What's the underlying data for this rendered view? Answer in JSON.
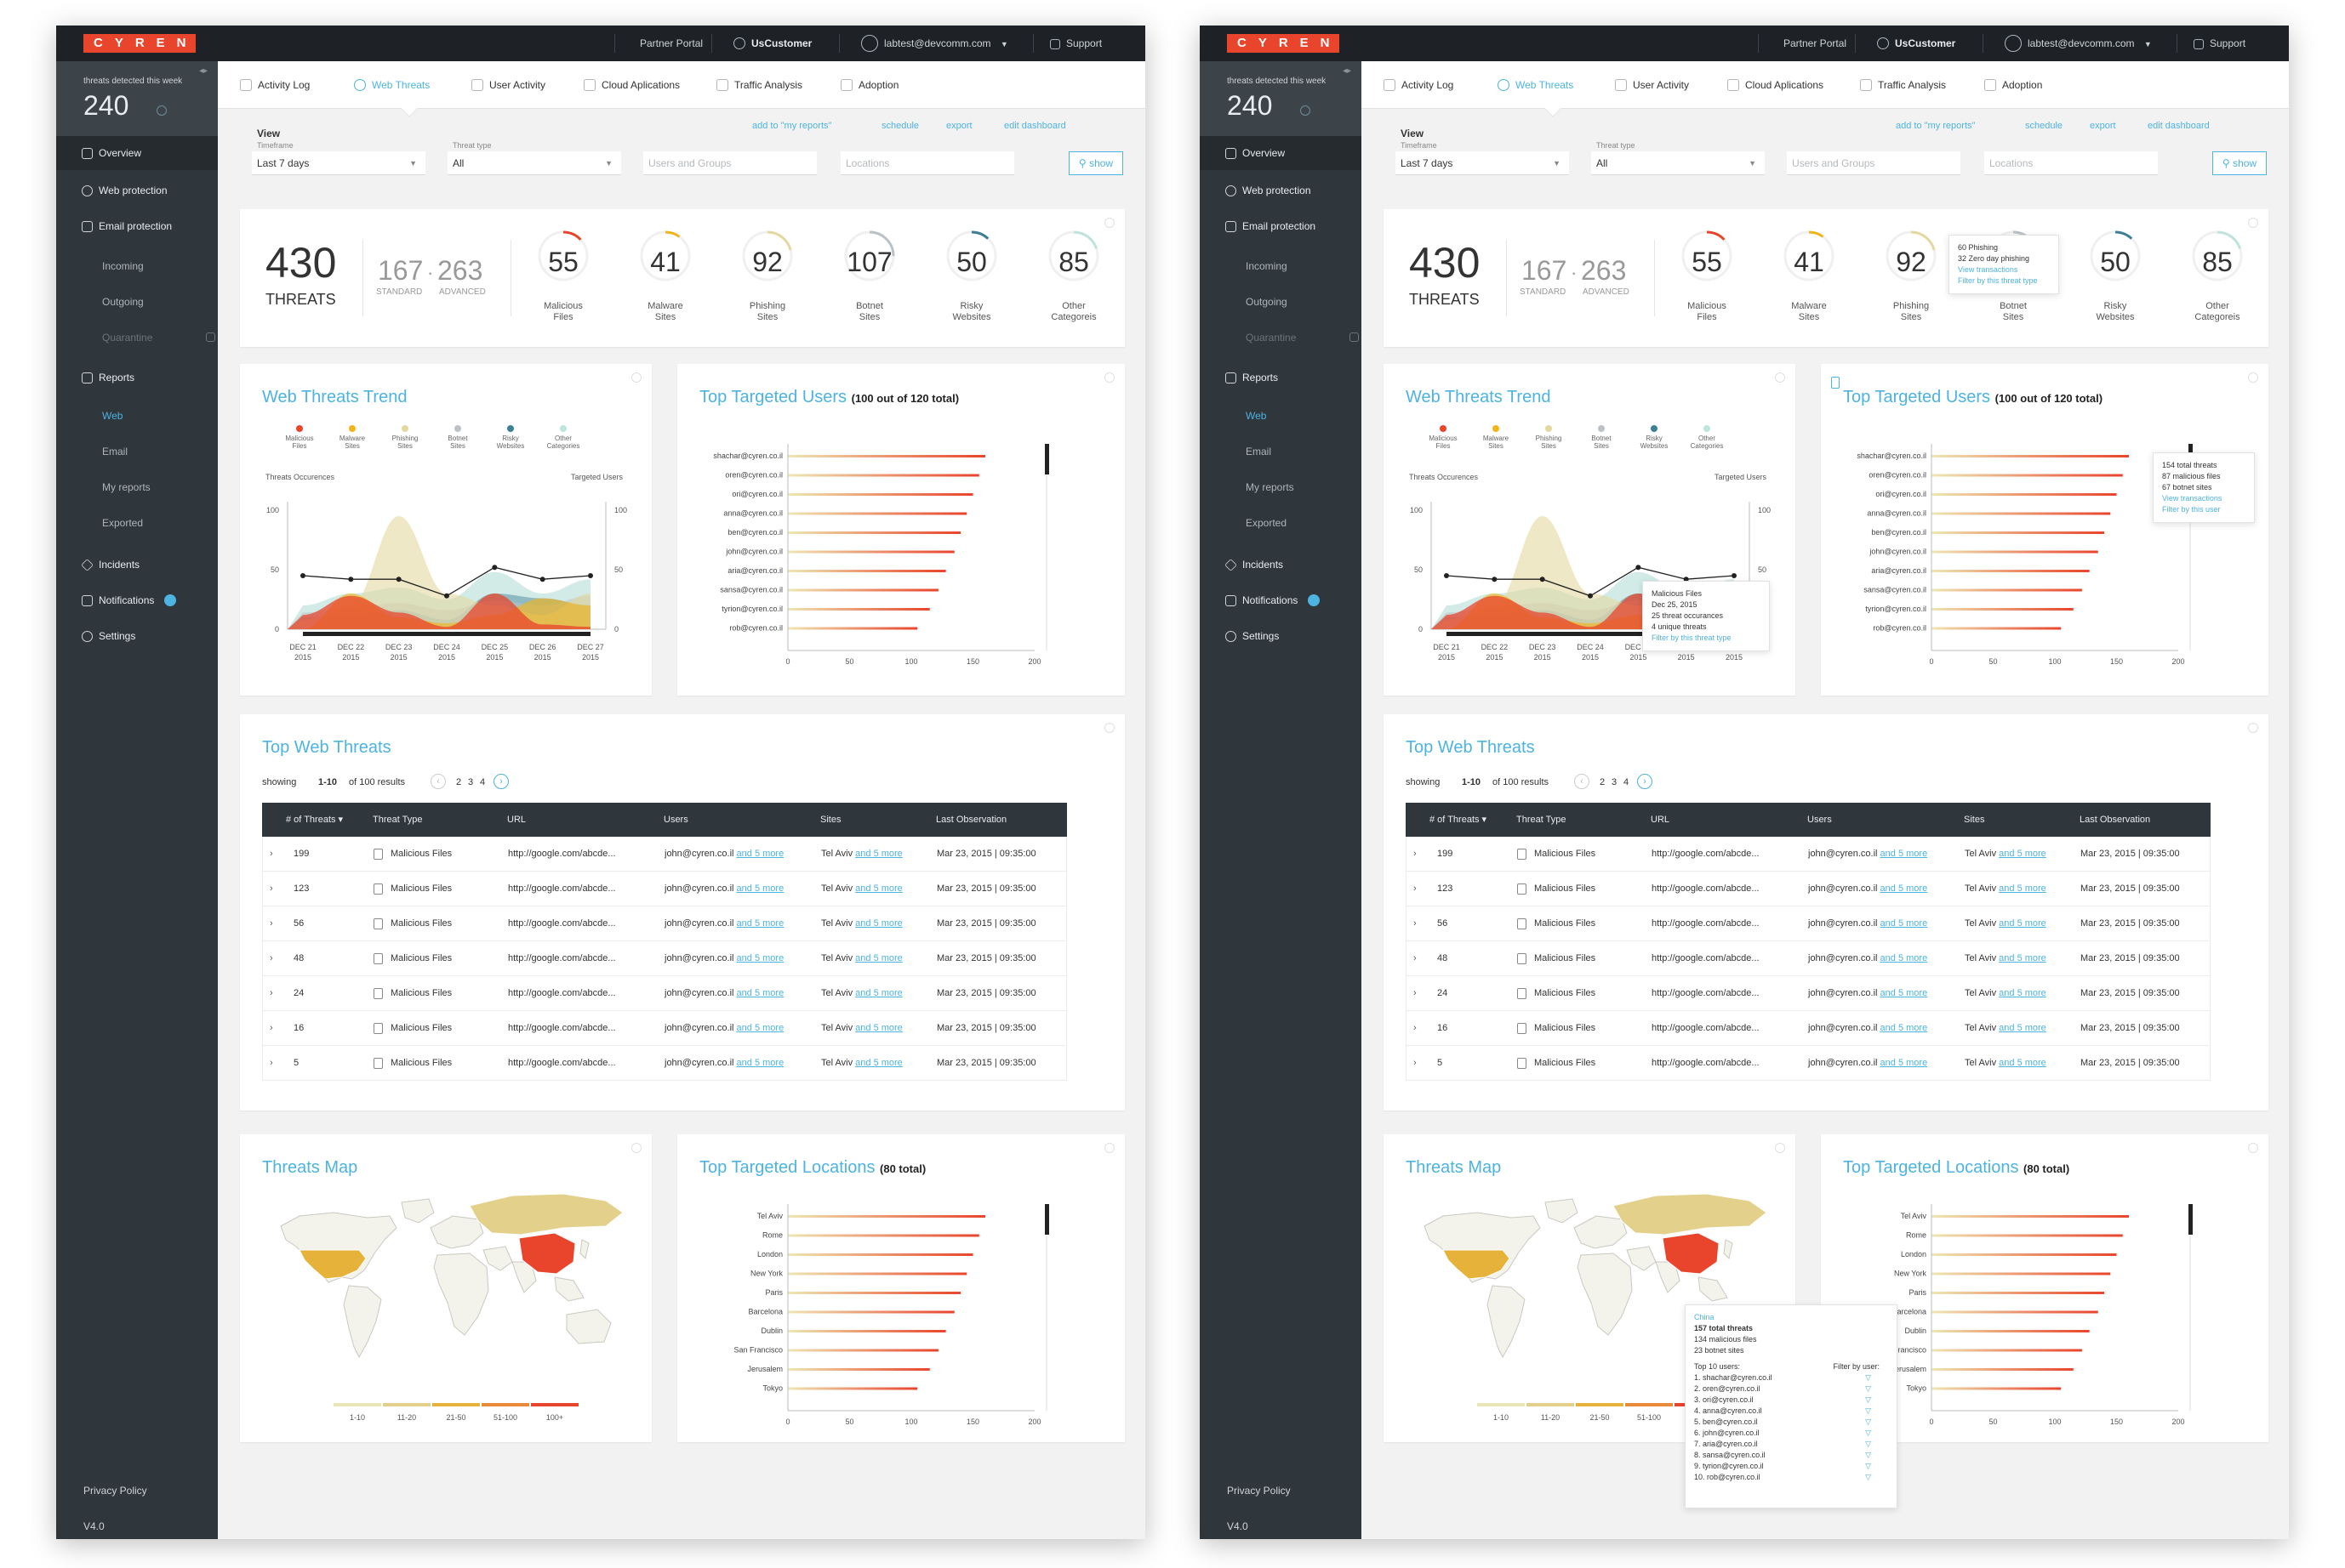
{
  "brand": {
    "logo": "CYREN",
    "accent": "#4db3e0",
    "danger": "#e8452c",
    "sidebar_bg": "#2f363c"
  },
  "topbar": {
    "partner": "Partner Portal",
    "customer": "UsCustomer",
    "user": "labtest@devcomm.com",
    "support": "Support"
  },
  "sidebar": {
    "week_label": "threats detected this week",
    "week_value": "240",
    "overview": "Overview",
    "web_protection": "Web protection",
    "email_protection": "Email protection",
    "incoming": "Incoming",
    "outgoing": "Outgoing",
    "quarantine": "Quarantine",
    "reports": "Reports",
    "web": "Web",
    "email": "Email",
    "my_reports": "My reports",
    "exported": "Exported",
    "incidents": "Incidents",
    "notifications": "Notifications",
    "settings": "Settings",
    "privacy": "Privacy Policy",
    "version": "V4.0"
  },
  "tabs": [
    "Activity Log",
    "Web Threats",
    "User Activity",
    "Cloud Aplications",
    "Traffic Analysis",
    "Adoption"
  ],
  "filters": {
    "view": "View",
    "timeframe_label": "Timeframe",
    "timeframe": "Last 7 days",
    "threat_label": "Threat type",
    "threat": "All",
    "users_placeholder": "Users and Groups",
    "locations_placeholder": "Locations",
    "show": "show"
  },
  "actions": {
    "add": "add to \"my reports\"",
    "schedule": "schedule",
    "export": "export",
    "edit": "edit dashboard"
  },
  "summary": {
    "total": "430",
    "total_label": "THREATS",
    "standard": "167",
    "standard_label": "STANDARD",
    "advanced": "263",
    "advanced_label": "ADVANCED",
    "gauges": [
      {
        "value": "55",
        "l1": "Malicious",
        "l2": "Files",
        "fill": 0.13,
        "color": "#e8452c"
      },
      {
        "value": "41",
        "l1": "Malware",
        "l2": "Sites",
        "fill": 0.1,
        "color": "#f0b41c"
      },
      {
        "value": "92",
        "l1": "Phishing",
        "l2": "Sites",
        "fill": 0.21,
        "color": "#e3d9a0"
      },
      {
        "value": "107",
        "l1": "Botnet",
        "l2": "Sites",
        "fill": 0.25,
        "color": "#b9c2c7"
      },
      {
        "value": "50",
        "l1": "Risky",
        "l2": "Websites",
        "fill": 0.12,
        "color": "#3f7f95"
      },
      {
        "value": "85",
        "l1": "Other",
        "l2": "Categoreis",
        "fill": 0.2,
        "color": "#bfe3dd"
      }
    ]
  },
  "trend": {
    "title": "Web Threats Trend",
    "legend": [
      {
        "l1": "Malicious",
        "l2": "Files",
        "color": "#e8452c"
      },
      {
        "l1": "Malware",
        "l2": "Sites",
        "color": "#f0b41c"
      },
      {
        "l1": "Phishing",
        "l2": "Sites",
        "color": "#e3d9a0"
      },
      {
        "l1": "Botnet",
        "l2": "Sites",
        "color": "#b9c2c7"
      },
      {
        "l1": "Risky",
        "l2": "Websites",
        "color": "#3f7f95"
      },
      {
        "l1": "Other",
        "l2": "Categories",
        "color": "#bfe3dd"
      }
    ],
    "left_axis": "Threats Occurences",
    "right_axis": "Targeted Users",
    "left_ticks": [
      "100",
      "50",
      "0"
    ],
    "right_ticks": [
      "100",
      "50",
      "0"
    ],
    "dates": [
      [
        "DEC 21",
        "2015"
      ],
      [
        "DEC 22",
        "2015"
      ],
      [
        "DEC 23",
        "2015"
      ],
      [
        "DEC 24",
        "2015"
      ],
      [
        "DEC 25",
        "2015"
      ],
      [
        "DEC 26",
        "2015"
      ],
      [
        "DEC 27",
        "2015"
      ]
    ],
    "line": [
      45,
      42,
      42,
      28,
      52,
      42,
      45
    ]
  },
  "users": {
    "title": "Top Targeted Users",
    "note": "(100 out of 120 total)",
    "names": [
      "shachar@cyren.co.il",
      "oren@cyren.co.il",
      "ori@cyren.co.il",
      "anna@cyren.co.il",
      "ben@cyren.co.il",
      "john@cyren.co.il",
      "aria@cyren.co.il",
      "sansa@cyren.co.il",
      "tyrion@cyren.co.il",
      "rob@cyren.co.il"
    ],
    "values": [
      160,
      155,
      150,
      145,
      140,
      135,
      128,
      122,
      115,
      105
    ],
    "ticks": [
      "0",
      "50",
      "100",
      "150",
      "200"
    ]
  },
  "top_threats": {
    "title": "Top Web Threats",
    "showing": "showing",
    "range": "1-10",
    "of": "of 100 results",
    "pages": [
      "2",
      "3",
      "4"
    ],
    "headers": [
      "# of Threats ▾",
      "Threat Type",
      "URL",
      "Users",
      "Sites",
      "Last Observation"
    ],
    "rows": [
      {
        "n": "199",
        "type": "Malicious  Files",
        "url": "http://google.com/abcde...",
        "user": "john@cyren.co.il",
        "more": "and 5 more",
        "site": "Tel Aviv",
        "smore": "and 5 more",
        "date": "Mar 23, 2015  |  09:35:00"
      },
      {
        "n": "123",
        "type": "Malicious  Files",
        "url": "http://google.com/abcde...",
        "user": "john@cyren.co.il",
        "more": "and 5 more",
        "site": "Tel Aviv",
        "smore": "and 5 more",
        "date": "Mar 23, 2015  |  09:35:00"
      },
      {
        "n": "56",
        "type": "Malicious  Files",
        "url": "http://google.com/abcde...",
        "user": "john@cyren.co.il",
        "more": "and 5 more",
        "site": "Tel Aviv",
        "smore": "and 5 more",
        "date": "Mar 23, 2015  |  09:35:00"
      },
      {
        "n": "48",
        "type": "Malicious  Files",
        "url": "http://google.com/abcde...",
        "user": "john@cyren.co.il",
        "more": "and 5 more",
        "site": "Tel Aviv",
        "smore": "and 5 more",
        "date": "Mar 23, 2015  |  09:35:00"
      },
      {
        "n": "24",
        "type": "Malicious  Files",
        "url": "http://google.com/abcde...",
        "user": "john@cyren.co.il",
        "more": "and 5 more",
        "site": "Tel Aviv",
        "smore": "and 5 more",
        "date": "Mar 23, 2015  |  09:35:00"
      },
      {
        "n": "16",
        "type": "Malicious  Files",
        "url": "http://google.com/abcde...",
        "user": "john@cyren.co.il",
        "more": "and 5 more",
        "site": "Tel Aviv",
        "smore": "and 5 more",
        "date": "Mar 23, 2015  |  09:35:00"
      },
      {
        "n": "5",
        "type": "Malicious  Files",
        "url": "http://google.com/abcde...",
        "user": "john@cyren.co.il",
        "more": "and 5 more",
        "site": "Tel Aviv",
        "smore": "and 5 more",
        "date": "Mar 23, 2015  |  09:35:00"
      }
    ]
  },
  "map": {
    "title": "Threats Map",
    "legend": [
      "1-10",
      "11-20",
      "21-50",
      "51-100",
      "100+"
    ],
    "legend_colors": [
      "#e8e6b8",
      "#e3d08a",
      "#e6b23a",
      "#e98a3a",
      "#e8452c"
    ]
  },
  "locations": {
    "title": "Top Targeted Locations",
    "note": "(80 total)",
    "names": [
      "Tel Aviv",
      "Rome",
      "London",
      "New York",
      "Paris",
      "Barcelona",
      "Dublin",
      "San Francisco",
      "Jerusalem",
      "Tokyo"
    ],
    "values": [
      160,
      155,
      150,
      145,
      140,
      135,
      128,
      122,
      115,
      105
    ],
    "ticks": [
      "0",
      "50",
      "100",
      "150",
      "200"
    ]
  },
  "tooltips": {
    "gauge": [
      "60 Phishing",
      "32 Zero day phishing",
      "View transactions",
      "Filter by this threat type"
    ],
    "user": [
      "154 total threats",
      "87 malicious files",
      "67 botnet sites",
      "View transactions",
      "Filter by this user"
    ],
    "trend": [
      "Malicious Files",
      "Dec 25, 2015",
      "25 threat occurances",
      "4 unique threats",
      "Filter by this threat type"
    ],
    "map_country": "China",
    "map_lines": [
      "157 total threats",
      "134 malicious files",
      "23 botnet sites"
    ],
    "map_top": "Top 10 users:",
    "map_filter": "Filter by user:",
    "map_users": [
      "1. shachar@cyren.co.il",
      "2. oren@cyren.co.il",
      "3. ori@cyren.co.il",
      "4. anna@cyren.co.il",
      "5. ben@cyren.co.il",
      "6. john@cyren.co.il",
      "7. aria@cyren.co.il",
      "8. sansa@cyren.co.il",
      "9. tyrion@cyren.co.il",
      "10. rob@cyren.co.il"
    ]
  }
}
